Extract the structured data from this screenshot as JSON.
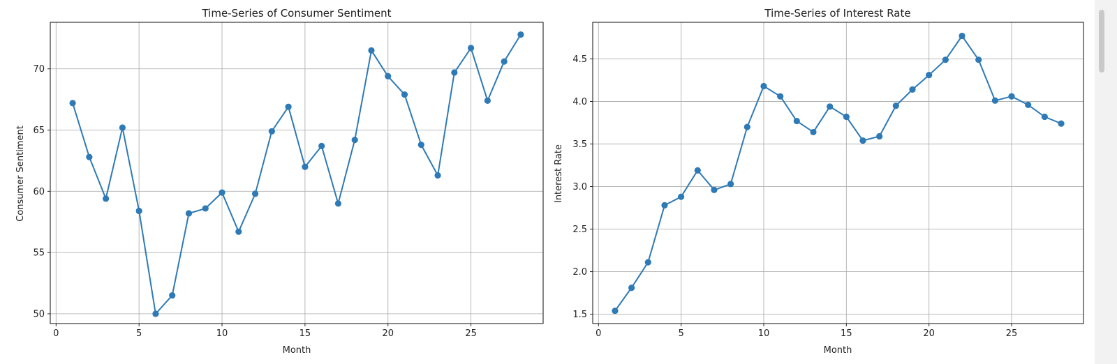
{
  "chart_data": [
    {
      "type": "line",
      "title": "Time-Series of Consumer Sentiment",
      "xlabel": "Month",
      "ylabel": "Consumer Sentiment",
      "xlim": [
        -0.35,
        29.35
      ],
      "ylim": [
        49.2,
        73.8
      ],
      "xticks": [
        0,
        5,
        10,
        15,
        20,
        25
      ],
      "yticks": [
        50,
        55,
        60,
        65,
        70
      ],
      "grid": true,
      "color": "#2e7ab6",
      "x": [
        1,
        2,
        3,
        4,
        5,
        6,
        7,
        8,
        9,
        10,
        11,
        12,
        13,
        14,
        15,
        16,
        17,
        18,
        19,
        20,
        21,
        22,
        23,
        24,
        25,
        26,
        27,
        28
      ],
      "values": [
        67.2,
        62.8,
        59.4,
        65.2,
        58.4,
        50.0,
        51.5,
        58.2,
        58.6,
        59.9,
        56.7,
        59.8,
        64.9,
        66.9,
        62.0,
        63.7,
        59.0,
        64.2,
        71.5,
        69.4,
        67.9,
        63.8,
        61.3,
        69.7,
        71.7,
        67.4,
        70.6,
        72.8
      ]
    },
    {
      "type": "line",
      "title": "Time-Series of Interest Rate",
      "xlabel": "Month",
      "ylabel": "Interest Rate",
      "xlim": [
        -0.35,
        29.35
      ],
      "ylim": [
        1.39,
        4.93
      ],
      "xticks": [
        0,
        5,
        10,
        15,
        20,
        25
      ],
      "yticks": [
        1.5,
        2.0,
        2.5,
        3.0,
        3.5,
        4.0,
        4.5
      ],
      "grid": true,
      "color": "#2e7ab6",
      "x": [
        1,
        2,
        3,
        4,
        5,
        6,
        7,
        8,
        9,
        10,
        11,
        12,
        13,
        14,
        15,
        16,
        17,
        18,
        19,
        20,
        21,
        22,
        23,
        24,
        25,
        26,
        27,
        28
      ],
      "values": [
        1.54,
        1.81,
        2.11,
        2.78,
        2.88,
        3.19,
        2.96,
        3.03,
        3.7,
        4.18,
        4.06,
        3.77,
        3.64,
        3.94,
        3.82,
        3.54,
        3.59,
        3.95,
        4.14,
        4.31,
        4.49,
        4.77,
        4.49,
        4.01,
        4.06,
        3.96,
        3.82,
        3.74
      ]
    }
  ]
}
